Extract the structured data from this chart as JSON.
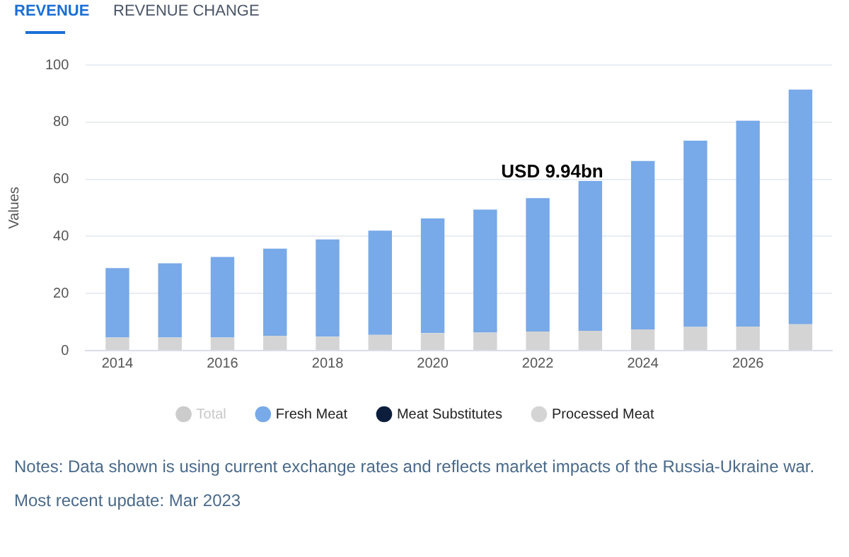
{
  "chart_data": {
    "type": "bar",
    "title": "REVENUE",
    "subtitle": "REVENUE CHANGE",
    "ylabel": "Values",
    "stacked": true,
    "x": [
      2014,
      2015,
      2016,
      2017,
      2018,
      2019,
      2020,
      2021,
      2022,
      2023,
      2024,
      2025,
      2026,
      2027
    ],
    "xlim": [
      2013.4,
      2027.6
    ],
    "xticks": [
      2014,
      2016,
      2018,
      2020,
      2022,
      2024,
      2026
    ],
    "ylim": [
      0,
      100
    ],
    "yticks": [
      0,
      20,
      40,
      60,
      80,
      100
    ],
    "grid": "y",
    "legend": "bottom",
    "marker": "circle",
    "series": [
      {
        "name": "Processed Meat",
        "color": "#d4d4d4",
        "values": [
          4.6,
          4.6,
          4.6,
          5.2,
          4.9,
          5.5,
          6.1,
          6.3,
          6.7,
          6.9,
          7.4,
          8.3,
          8.4,
          9.2
        ]
      },
      {
        "name": "Meat Substitutes",
        "color": "#0d1e3c",
        "values": [
          0,
          0,
          0,
          0,
          0,
          0,
          0,
          0,
          0,
          0,
          0,
          0,
          0,
          0
        ]
      },
      {
        "name": "Fresh Meat",
        "color": "#78a9e8",
        "values": [
          24.3,
          26.0,
          28.2,
          30.5,
          34.0,
          36.5,
          40.2,
          43.1,
          46.7,
          52.5,
          59.0,
          65.2,
          72.1,
          82.2
        ]
      },
      {
        "name": "Total",
        "color": "#cccccc",
        "values": [
          null,
          null,
          null,
          null,
          null,
          null,
          null,
          null,
          null,
          null,
          null,
          null,
          null,
          null
        ]
      }
    ],
    "annotations": [
      "USD 9.94bn",
      "Notes: Data shown is using current exchange rates and reflects market impacts of the Russia-Ukraine war.",
      "Most recent update: Mar 2023"
    ]
  }
}
